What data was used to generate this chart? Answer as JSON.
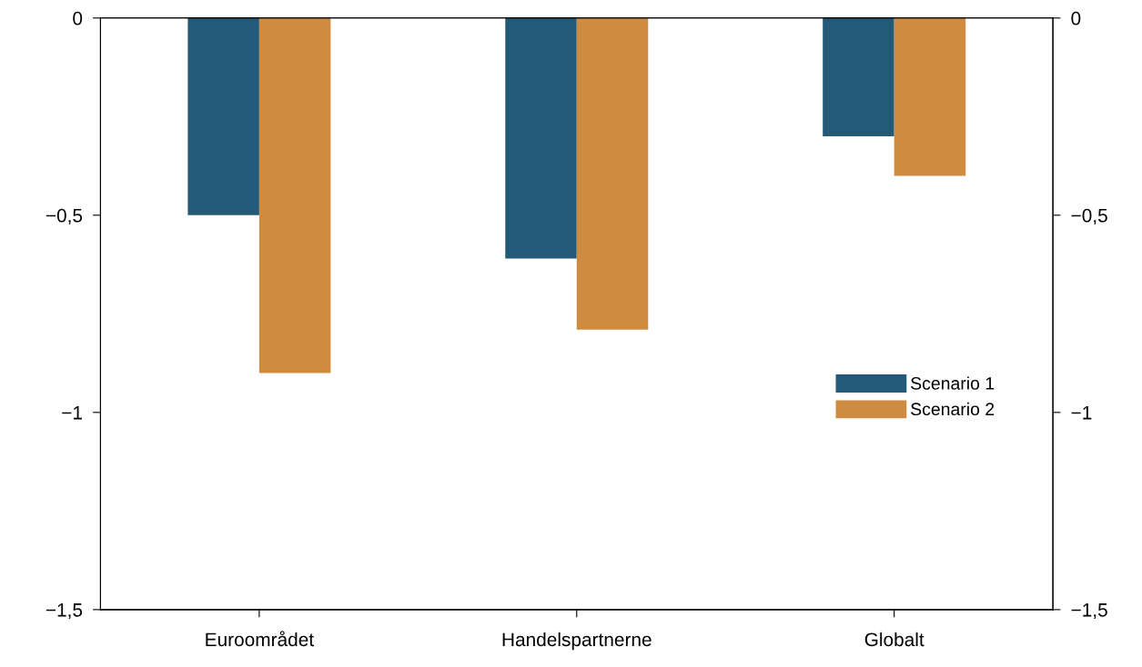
{
  "chart_data": {
    "type": "bar",
    "categories": [
      "Euroområdet",
      "Handelspartnerne",
      "Globalt"
    ],
    "series": [
      {
        "name": "Scenario 1",
        "color": "#245a78",
        "values": [
          -0.5,
          -0.61,
          -0.3
        ]
      },
      {
        "name": "Scenario 2",
        "color": "#cf8c41",
        "values": [
          -0.9,
          -0.79,
          -0.4
        ]
      }
    ],
    "ylim": [
      -1.5,
      0
    ],
    "yticks": [
      {
        "value": -1.5,
        "label": "−1,5"
      },
      {
        "value": -1,
        "label": "−1"
      },
      {
        "value": -0.5,
        "label": "−0,5"
      },
      0
    ],
    "y2lim": [
      -1.5,
      0
    ],
    "y2ticks": [
      {
        "value": -1.5,
        "label": "−1,5"
      },
      {
        "value": -1,
        "label": "−1"
      },
      {
        "value": -0.5,
        "label": "−0,5"
      },
      0
    ],
    "legend": "right",
    "grid": false
  }
}
